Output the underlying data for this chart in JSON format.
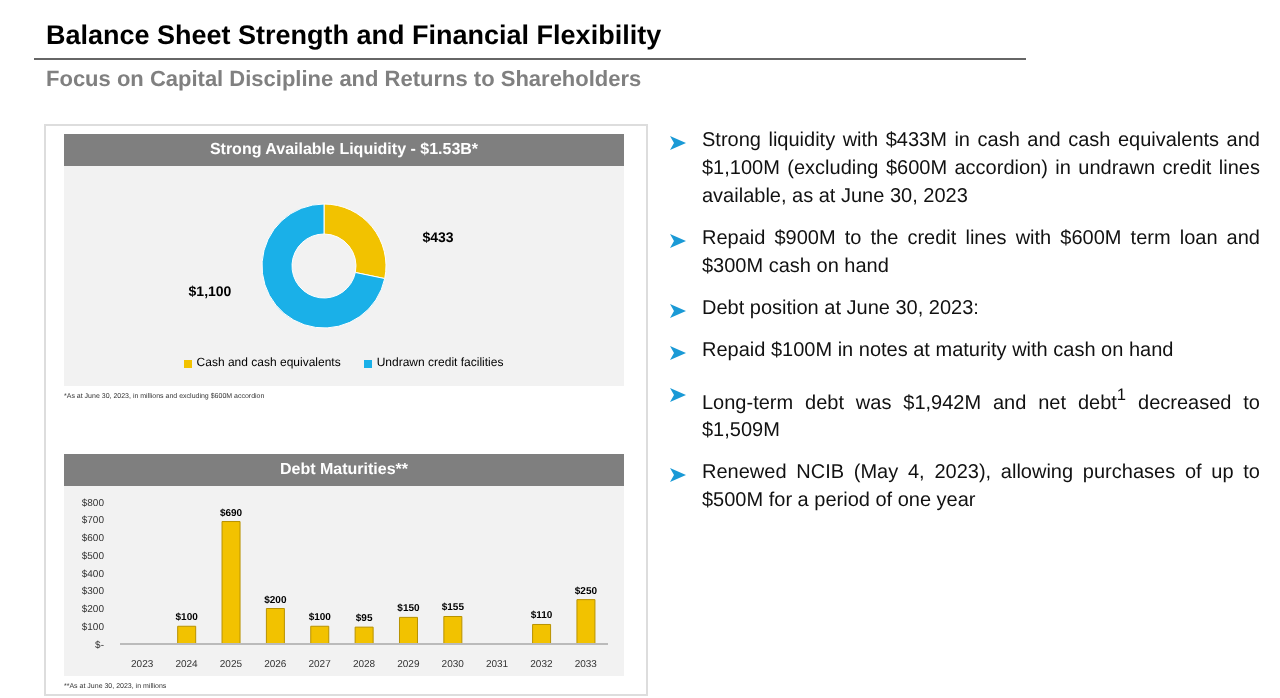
{
  "chart_data": [
    {
      "type": "other",
      "title": "Balance Sheet Strength and Financial Flexibility",
      "subtitle": "Focus on Capital Discipline and Returns to Shareholders",
      "annotations": [
        "Strong liquidity with $433M in cash and cash equivalents and $1,100M (excluding $600M accordion) in undrawn credit lines available, as at June 30, 2023",
        "Repaid $900M to the credit lines with $600M term loan and $300M cash on hand",
        "Debt position at June 30, 2023:",
        "Repaid $100M in notes at maturity with cash on hand",
        "Long-term debt was $1,942M and net debt$^{1}$ decreased to $1,509M",
        "Renewed NCIB (May 4, 2023), allowing purchases of up to $500M for a period of one year"
      ]
    },
    {
      "type": "donut",
      "title": "Strong Available Liquidity - $1.53B*",
      "categories": [
        "Cash and cash equivalents",
        "Undrawn credit facilities"
      ],
      "values": [
        433,
        1100
      ],
      "colors": [
        "#f2c200",
        "#1ab0e8"
      ],
      "value_labels": [
        "$433",
        "$1,100"
      ],
      "legend": "bottom",
      "annotations": [
        "*As at June 30, 2023, in millions and excluding $600M accordion"
      ]
    },
    {
      "type": "bar",
      "title": "Debt Maturities**",
      "categories": [
        "2023",
        "2024",
        "2025",
        "2026",
        "2027",
        "2028",
        "2029",
        "2030",
        "2031",
        "2032",
        "2033"
      ],
      "values": [
        null,
        100,
        690,
        200,
        100,
        95,
        150,
        155,
        null,
        110,
        250
      ],
      "color": "#f2c200",
      "value_labels": [
        null,
        "$100",
        "$690",
        "$200",
        "$100",
        "$95",
        "$150",
        "$155",
        null,
        "$110",
        "$250"
      ],
      "ylim": [
        0,
        800
      ],
      "yticks": [
        {
          "value": 0,
          "label": "$-"
        },
        {
          "value": 100,
          "label": "$100"
        },
        {
          "value": 200,
          "label": "$200"
        },
        {
          "value": 300,
          "label": "$300"
        },
        {
          "value": 400,
          "label": "$400"
        },
        {
          "value": 500,
          "label": "$500"
        },
        {
          "value": 600,
          "label": "$600"
        },
        {
          "value": 700,
          "label": "$700"
        },
        {
          "value": 800,
          "label": "$800"
        }
      ],
      "annotations": [
        "**As at June 30, 2023, in millions"
      ]
    }
  ]
}
